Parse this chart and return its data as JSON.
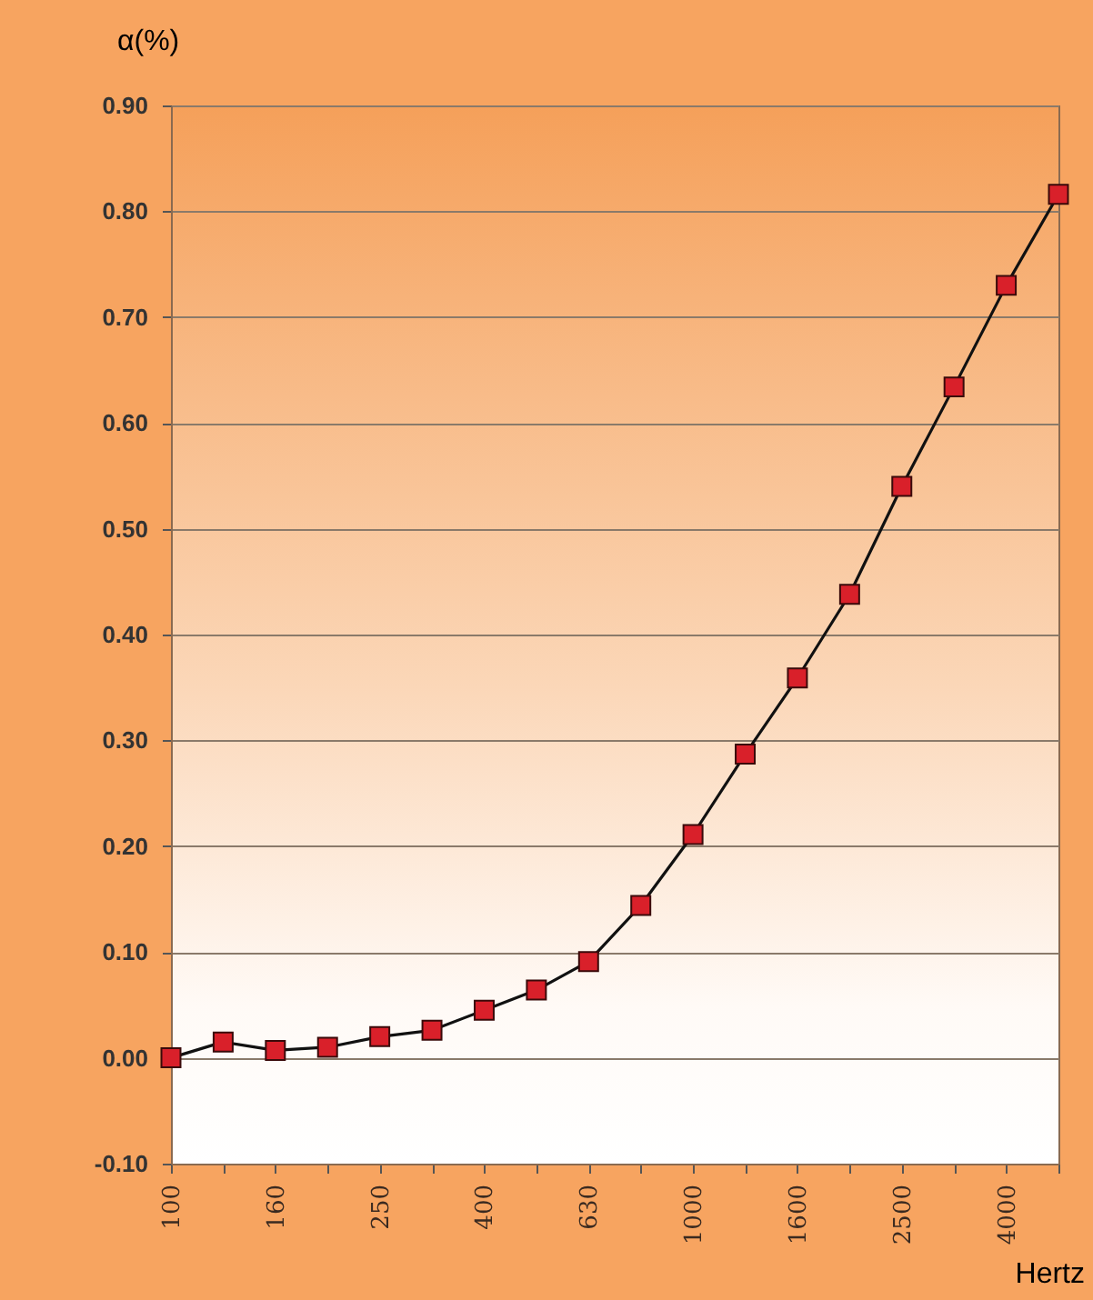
{
  "chart_data": {
    "type": "line",
    "ylabel": "α(%)",
    "xlabel": "Hertz",
    "categories": [
      "100",
      null,
      "160",
      null,
      "250",
      null,
      "400",
      null,
      "630",
      null,
      "1000",
      null,
      "1600",
      null,
      "2500",
      null,
      "4000",
      null
    ],
    "series": [
      {
        "color": "#d9202a",
        "values": [
          0.0,
          0.015,
          0.007,
          0.01,
          0.02,
          0.026,
          0.045,
          0.064,
          0.091,
          0.144,
          0.211,
          0.287,
          0.359,
          0.438,
          0.54,
          0.634,
          0.73,
          0.816
        ]
      }
    ],
    "ylim": [
      -0.1,
      0.9
    ],
    "yticks": [
      {
        "value": -0.1,
        "label": "-0.10"
      },
      {
        "value": 0,
        "label": "0.00"
      },
      {
        "value": 0.1,
        "label": "0.10"
      },
      {
        "value": 0.2,
        "label": "0.20"
      },
      {
        "value": 0.3,
        "label": "0.30"
      },
      {
        "value": 0.4,
        "label": "0.40"
      },
      {
        "value": 0.5,
        "label": "0.50"
      },
      {
        "value": 0.6,
        "label": "0.60"
      },
      {
        "value": 0.7,
        "label": "0.70"
      },
      {
        "value": 0.8,
        "label": "0.80"
      },
      {
        "value": 0.9,
        "label": "0.90"
      }
    ],
    "grid": "y",
    "marker": "square",
    "line_style": "solid"
  }
}
